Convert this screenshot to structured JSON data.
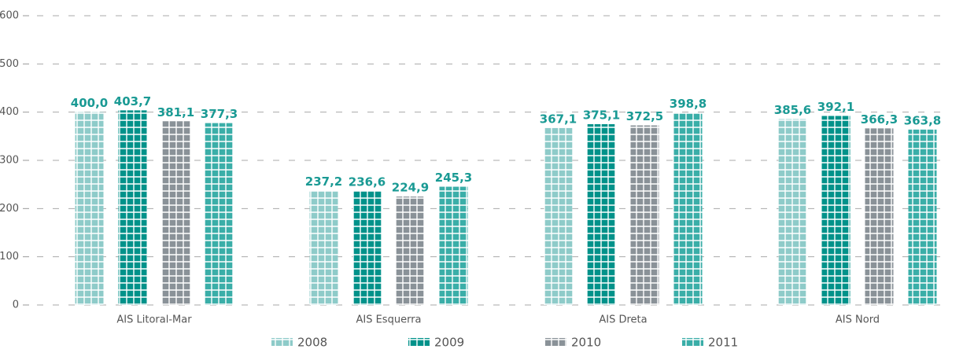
{
  "chart_data": {
    "type": "bar",
    "categories": [
      "AIS Litoral-Mar",
      "AIS Esquerra",
      "AIS Dreta",
      "AIS Nord"
    ],
    "series": [
      {
        "name": "2008",
        "color": "#8ecbc9",
        "values": [
          400.0,
          237.2,
          367.1,
          385.6
        ],
        "value_labels": [
          "400,0",
          "237,2",
          "367,1",
          "385,6"
        ]
      },
      {
        "name": "2009",
        "color": "#00928a",
        "values": [
          403.7,
          236.6,
          375.1,
          392.1
        ],
        "value_labels": [
          "403,7",
          "236,6",
          "375,1",
          "392,1"
        ]
      },
      {
        "name": "2010",
        "color": "#8a9298",
        "values": [
          381.1,
          224.9,
          372.5,
          366.3
        ],
        "value_labels": [
          "381,1",
          "224,9",
          "372,5",
          "366,3"
        ]
      },
      {
        "name": "2011",
        "color": "#3aaea8",
        "values": [
          377.3,
          245.3,
          398.8,
          363.8
        ],
        "value_labels": [
          "377,3",
          "245,3",
          "398,8",
          "363,8"
        ]
      }
    ],
    "ylim": [
      0,
      600
    ],
    "yticks": [
      0,
      100,
      200,
      300,
      400,
      500,
      600
    ],
    "grid": true
  }
}
